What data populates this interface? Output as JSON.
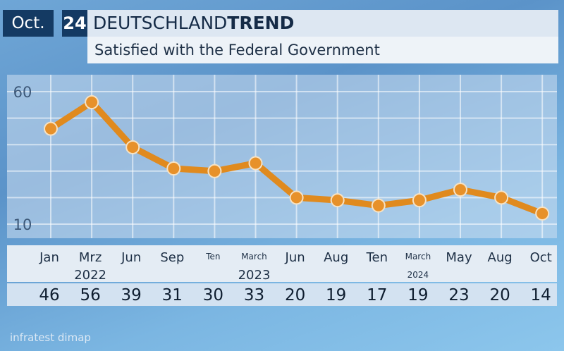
{
  "header": {
    "month": "Oct.",
    "day": "24",
    "title_light": "DEUTSCHLAND",
    "title_bold": "TREND",
    "subtitle": "Satisfied with the Federal Government"
  },
  "source": "infratest dimap",
  "colors": {
    "line": "#e08a1e",
    "point_fill": "#e7912a",
    "point_stroke": "#f6e2c4",
    "header_dark": "#143a63"
  },
  "chart_data": {
    "type": "line",
    "categories": [
      "Jan",
      "Mrz",
      "Jun",
      "Sep",
      "Ten",
      "March",
      "Jun",
      "Aug",
      "Ten",
      "March",
      "May",
      "Aug",
      "Oct"
    ],
    "category_small": [
      false,
      false,
      false,
      false,
      true,
      true,
      false,
      false,
      false,
      true,
      false,
      false,
      false
    ],
    "year_labels": [
      {
        "index": 1,
        "text": "2022",
        "small": false
      },
      {
        "index": 5,
        "text": "2023",
        "small": false
      },
      {
        "index": 9,
        "text": "2024",
        "small": true
      }
    ],
    "series": [
      {
        "values": [
          46,
          56,
          39,
          31,
          30,
          33,
          20,
          19,
          17,
          19,
          23,
          20,
          14
        ]
      }
    ],
    "data_labels": [
      "46",
      "56",
      "39",
      "31",
      "30",
      "33",
      "20",
      "19",
      "17",
      "19",
      "23",
      "20",
      "14"
    ],
    "yticks": [
      "60",
      "10"
    ],
    "ylim": [
      10,
      60
    ],
    "grid": true,
    "title": "Satisfied with the Federal Government"
  }
}
